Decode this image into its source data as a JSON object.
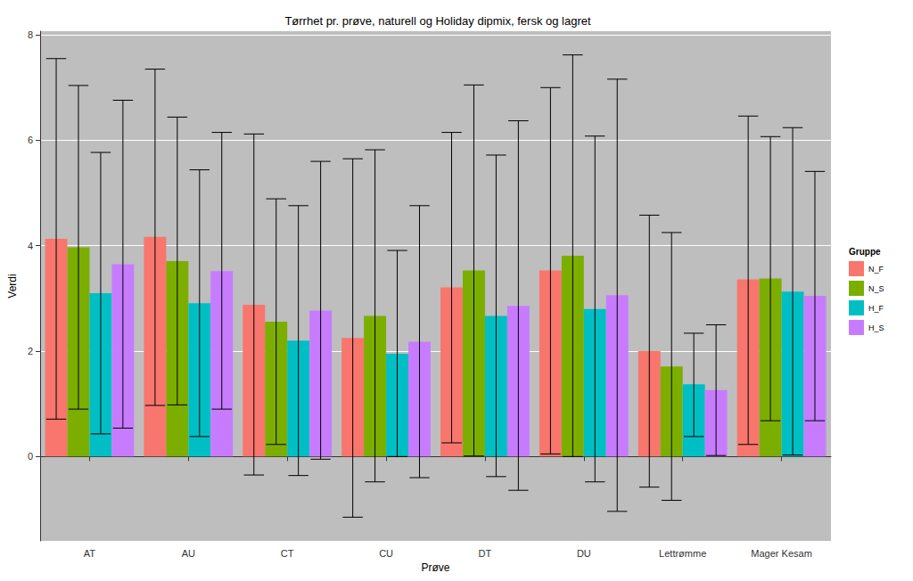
{
  "chart_data": {
    "type": "bar",
    "title": "Tørrhet pr. prøve, naturell og Holiday dipmix, fersk og lagret",
    "x_label": "Prøve",
    "y_label": "Verdi",
    "legend_title": "Gruppe",
    "legend": "right",
    "grid": true,
    "categories": [
      "AT",
      "AU",
      "CT",
      "CU",
      "DT",
      "DU",
      "Lettrømme",
      "Mager Kesam"
    ],
    "ylim": [
      -1.6,
      8.07
    ],
    "yticks": [
      0,
      2,
      4,
      6,
      8
    ],
    "series": [
      {
        "name": "N_F",
        "color": "#F8766D",
        "values": [
          4.13,
          4.17,
          2.88,
          2.25,
          3.21,
          3.53,
          2.0,
          3.36
        ],
        "error_low": [
          0.71,
          0.97,
          -0.35,
          -1.15,
          0.26,
          0.05,
          -0.58,
          0.23
        ],
        "error_high": [
          7.55,
          7.35,
          6.12,
          5.65,
          6.15,
          7.0,
          4.58,
          6.46
        ]
      },
      {
        "name": "N_S",
        "color": "#7CAE00",
        "values": [
          3.97,
          3.71,
          2.56,
          2.67,
          3.53,
          3.81,
          1.71,
          3.38
        ],
        "error_low": [
          0.9,
          0.98,
          0.23,
          -0.48,
          0.01,
          0.0,
          -0.83,
          0.68
        ],
        "error_high": [
          7.04,
          6.44,
          4.89,
          5.82,
          7.05,
          7.62,
          4.25,
          6.07
        ]
      },
      {
        "name": "H_F",
        "color": "#00BFC4",
        "values": [
          3.1,
          2.91,
          2.2,
          1.95,
          2.67,
          2.8,
          1.37,
          3.13
        ],
        "error_low": [
          0.43,
          0.38,
          -0.36,
          0.0,
          -0.38,
          -0.48,
          0.38,
          0.03
        ],
        "error_high": [
          5.77,
          5.44,
          4.76,
          3.91,
          5.72,
          6.08,
          2.34,
          6.24
        ]
      },
      {
        "name": "H_S",
        "color": "#C77CFF",
        "values": [
          3.65,
          3.52,
          2.77,
          2.18,
          2.86,
          3.06,
          1.26,
          3.05
        ],
        "error_low": [
          0.54,
          0.9,
          -0.05,
          -0.4,
          -0.64,
          -1.04,
          0.02,
          0.68
        ],
        "error_high": [
          6.76,
          6.15,
          5.6,
          4.76,
          6.37,
          7.16,
          2.5,
          5.41
        ]
      }
    ]
  }
}
